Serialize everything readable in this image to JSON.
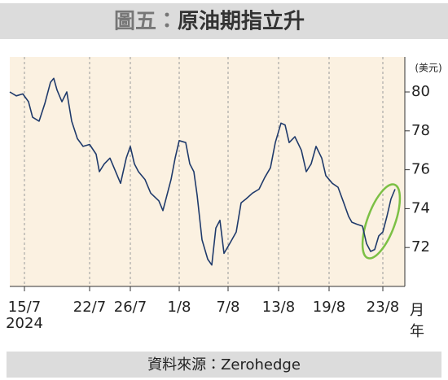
{
  "chart_data": {
    "type": "line",
    "figure_label": "圖五：",
    "title": "原油期指立升",
    "y_unit": "(美元)",
    "x_unit_month": "月",
    "x_unit_year": "年",
    "year": "2024",
    "source": "資料來源：Zerohedge",
    "color": "#1f3a6b",
    "x": [
      0,
      1.6,
      3.2,
      4.6,
      5.6,
      7.2,
      8.6,
      10,
      10.8,
      11.6,
      12.8,
      14,
      15.2,
      16.6,
      18,
      19.6,
      21.2,
      22,
      23.2,
      24.6,
      25.6,
      27.2,
      28.6,
      29.6,
      30.6,
      31.6,
      33.2,
      34.6,
      36.6,
      37.6,
      38.6,
      39.6,
      40.6,
      41.6,
      43.2,
      44.2,
      45.2,
      46,
      47.2,
      48.6,
      49.6,
      50.6,
      51.6,
      52.6,
      54,
      55.6,
      56.8,
      58,
      59.6,
      61.2,
      62.6,
      64,
      65.2,
      66.6,
      67.6,
      68.6,
      70,
      71.6,
      72.8,
      74,
      75.2,
      76.6,
      77.6,
      79.2,
      80.6,
      82,
      83.2,
      84,
      85.2,
      86.6,
      87.6,
      88.6,
      89.6,
      90.6,
      91.6,
      92.6,
      93.6,
      94.6
    ],
    "values": [
      80.0,
      79.8,
      79.9,
      79.5,
      78.7,
      78.5,
      79.4,
      80.5,
      80.7,
      80.1,
      79.5,
      80.0,
      78.5,
      77.6,
      77.2,
      77.3,
      76.8,
      75.9,
      76.3,
      76.6,
      76.1,
      75.3,
      76.6,
      77.2,
      76.3,
      75.9,
      75.5,
      74.8,
      74.4,
      73.9,
      74.7,
      75.5,
      76.6,
      77.5,
      77.4,
      76.3,
      75.9,
      74.7,
      72.4,
      71.4,
      71.1,
      73.0,
      73.4,
      71.7,
      72.2,
      72.8,
      74.3,
      74.5,
      74.8,
      75.0,
      75.6,
      76.1,
      77.4,
      78.4,
      78.3,
      77.4,
      77.7,
      77.0,
      75.9,
      76.3,
      77.2,
      76.6,
      75.7,
      75.3,
      75.1,
      74.3,
      73.6,
      73.3,
      73.2,
      73.1,
      72.2,
      71.8,
      71.9,
      72.6,
      72.8,
      73.6,
      74.5,
      75.0
    ],
    "xlim": [
      0,
      97
    ],
    "xticks": [
      {
        "value": 3.6,
        "label": "15/7"
      },
      {
        "value": 19.6,
        "label": "22/7"
      },
      {
        "value": 29.6,
        "label": "26/7"
      },
      {
        "value": 41.6,
        "label": "1/8"
      },
      {
        "value": 53.6,
        "label": "7/8"
      },
      {
        "value": 66,
        "label": "13/8"
      },
      {
        "value": 78.4,
        "label": "19/8"
      },
      {
        "value": 91.6,
        "label": "23/8"
      }
    ],
    "ylim": [
      70,
      81.8
    ],
    "yticks": [
      72,
      74,
      76,
      78,
      80
    ],
    "grid": true
  }
}
